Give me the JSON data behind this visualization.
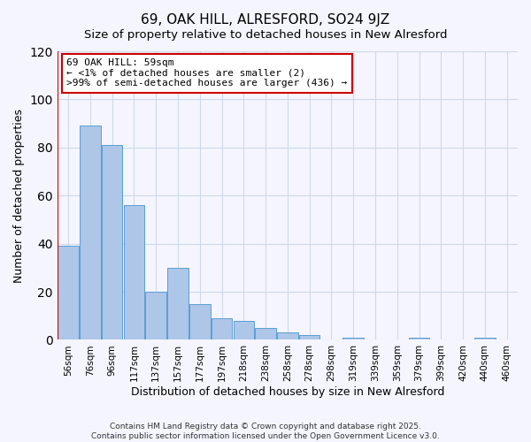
{
  "title": "69, OAK HILL, ALRESFORD, SO24 9JZ",
  "subtitle": "Size of property relative to detached houses in New Alresford",
  "xlabel": "Distribution of detached houses by size in New Alresford",
  "ylabel": "Number of detached properties",
  "categories": [
    "56sqm",
    "76sqm",
    "96sqm",
    "117sqm",
    "137sqm",
    "157sqm",
    "177sqm",
    "197sqm",
    "218sqm",
    "238sqm",
    "258sqm",
    "278sqm",
    "298sqm",
    "319sqm",
    "339sqm",
    "359sqm",
    "379sqm",
    "399sqm",
    "420sqm",
    "440sqm",
    "460sqm"
  ],
  "values": [
    39,
    89,
    81,
    56,
    20,
    30,
    15,
    9,
    8,
    5,
    3,
    2,
    0,
    1,
    0,
    0,
    1,
    0,
    0,
    1,
    0
  ],
  "bar_color": "#aec6e8",
  "bar_edge_color": "#5a9fd4",
  "ylim": [
    0,
    120
  ],
  "yticks": [
    0,
    20,
    40,
    60,
    80,
    100,
    120
  ],
  "highlight_line_color": "#cc0000",
  "annotation_title": "69 OAK HILL: 59sqm",
  "annotation_line1": "← <1% of detached houses are smaller (2)",
  "annotation_line2": ">99% of semi-detached houses are larger (436) →",
  "annotation_box_color": "#cc0000",
  "footer1": "Contains HM Land Registry data © Crown copyright and database right 2025.",
  "footer2": "Contains public sector information licensed under the Open Government Licence v3.0.",
  "bg_color": "#f5f5ff",
  "grid_color": "#d0d8e8"
}
